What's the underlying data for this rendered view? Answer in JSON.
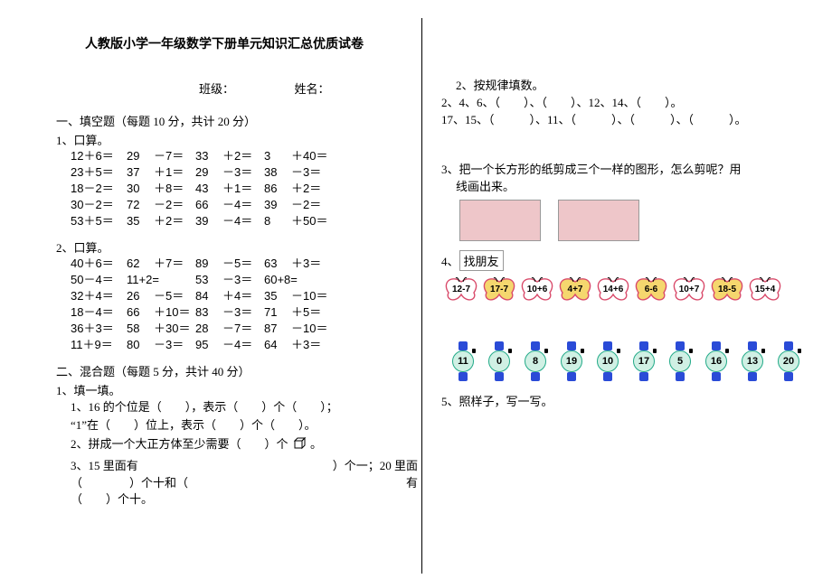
{
  "title": "人教版小学一年级数学下册单元知识汇总优质试卷",
  "class_label": "班级：",
  "name_label": "姓名：",
  "section1_heading": "一、填空题（每题  10 分，共计 20 分）",
  "q1_label": "1、口算。",
  "q1_rows": [
    [
      "12＋6＝",
      "29",
      "－7＝",
      "33",
      "＋2＝",
      "3",
      "＋40＝"
    ],
    [
      "23＋5＝",
      "37",
      "＋1＝",
      "29",
      "－3＝",
      "38",
      "－3＝"
    ],
    [
      "18－2＝",
      "30",
      "＋8＝",
      "43",
      "＋1＝",
      "86",
      "＋2＝"
    ],
    [
      "30－2＝",
      "72",
      "－2＝",
      "66",
      "－4＝",
      "39",
      "－2＝"
    ],
    [
      "53＋5＝",
      "35",
      "＋2＝",
      "39",
      "－4＝",
      "8",
      "＋50＝"
    ]
  ],
  "q2_label": "2、口算。",
  "q2_rows": [
    [
      "40＋6＝",
      "62",
      "＋7＝",
      "89",
      "－5＝",
      "63",
      "＋3＝"
    ],
    [
      "50－4＝",
      "11+2=",
      "",
      "53",
      "－3＝",
      "60+8=",
      ""
    ],
    [
      "32＋4＝",
      "26",
      "－5＝",
      "84",
      "＋4＝",
      "35",
      "－10＝"
    ],
    [
      "18－4＝",
      "66",
      "＋10＝",
      "83",
      "－3＝",
      "71",
      "＋5＝"
    ],
    [
      "36＋3＝",
      "58",
      "＋30＝",
      "28",
      "－7＝",
      "87",
      "－10＝"
    ],
    [
      "11＋9＝",
      "80",
      "－3＝",
      "95",
      "－4＝",
      "64",
      "＋3＝"
    ]
  ],
  "section2_heading": "二、混合题（每题   5 分，共计 40 分）",
  "m1_label": "1、填一填。",
  "m1_line1": "1、16 的个位是（　　），表示（　　）个（　　）；",
  "m1_line2": "“1”在（　　）位上，表示（　　）个（　　）。",
  "m1_line3a": "2、拼成一个大正方体至少需要（　　）个",
  "m1_line3b": "。",
  "m1_line4": "3、15 里面有",
  "m1_line4b": "）个一；20 里面",
  "m1_line5": "（　　　　）个十和（",
  "m1_line5b": "有",
  "m1_line6": "（　　）个十。",
  "r2_label": "2、按规律填数。",
  "r2_line1": "2、4、6、（　　）、（　　）、12、14、（　　）。",
  "r2_line2": "17、15、（　　　）、11、（　　　）、（　　　）、（　　　）。",
  "r3_line1": "3、把一个长方形的纸剪成三个一样的图形，怎么剪呢？用",
  "r3_line2": "线画出来。",
  "r4_label": "4、",
  "r4_text": "找朋友",
  "butterflies": [
    "12-7",
    "17-7",
    "10+6",
    "4+7",
    "14+6",
    "6-6",
    "10+7",
    "18-5",
    "15+4"
  ],
  "watches": [
    "11",
    "0",
    "8",
    "19",
    "10",
    "17",
    "5",
    "16",
    "13",
    "20"
  ],
  "r5_label": "5、照样子，写一写。",
  "colors": {
    "pink": "#eec6c9",
    "blue": "#2a4bd7",
    "teal_face": "#d0f0e4",
    "butterfly_red": "#d94a6a",
    "butterfly_yellow": "#f5d76e"
  }
}
